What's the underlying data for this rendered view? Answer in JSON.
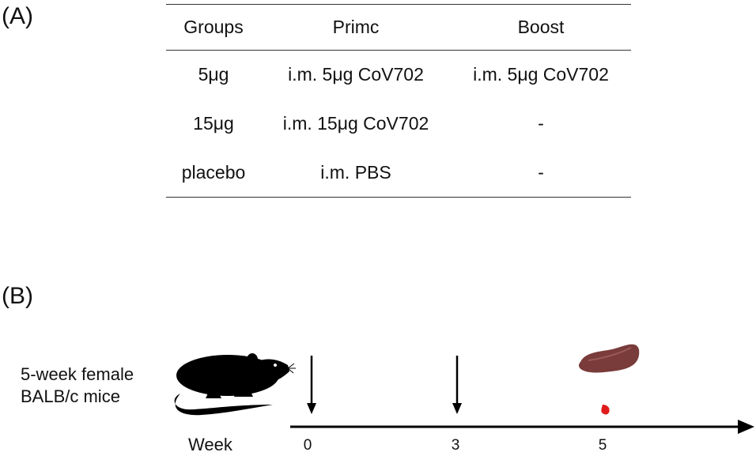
{
  "panels": {
    "a": "(A)",
    "b": "(B)"
  },
  "table": {
    "headers": [
      "Groups",
      "Primc",
      "Boost"
    ],
    "rows": [
      [
        "5μg",
        "i.m. 5μg CoV702",
        "i.m. 5μg CoV702"
      ],
      [
        "15μg",
        "i.m. 15μg CoV702",
        "-"
      ],
      [
        "placebo",
        "i.m. PBS",
        "-"
      ]
    ]
  },
  "timeline": {
    "subject_line1": "5-week female",
    "subject_line2": "BALB/c mice",
    "axis_title": "Week",
    "ticks": [
      "0",
      "3",
      "5"
    ]
  },
  "icons": [
    "mouse-icon",
    "injection-arrow-icon",
    "spleen-icon",
    "blood-drop-icon"
  ],
  "colors": {
    "spleen": "#7a3b3b",
    "blood": "#e01b1b",
    "mouse": "#000000",
    "line": "#000000"
  }
}
